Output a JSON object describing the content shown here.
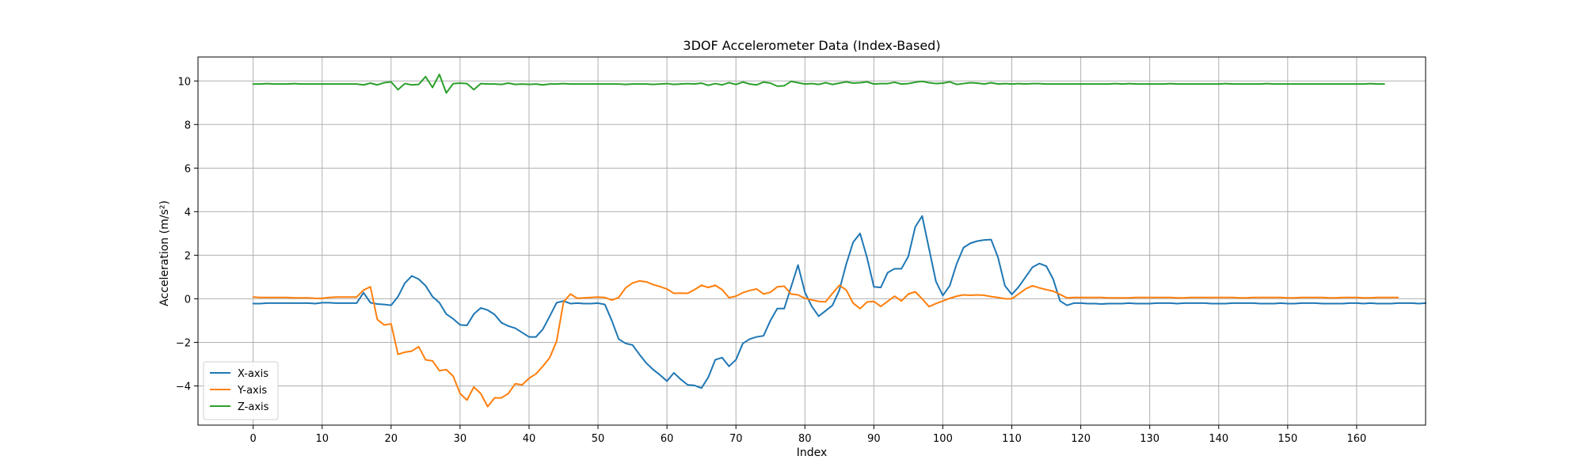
{
  "chart_data": {
    "type": "line",
    "title": "3DOF Accelerometer Data (Index-Based)",
    "xlabel": "Index",
    "ylabel": "Acceleration (m/s²)",
    "xlim": [
      -8,
      170
    ],
    "ylim": [
      -5.8,
      11.1
    ],
    "xticks": [
      0,
      10,
      20,
      30,
      40,
      50,
      60,
      70,
      80,
      90,
      100,
      110,
      120,
      130,
      140,
      150,
      160
    ],
    "yticks": [
      -4,
      -2,
      0,
      2,
      4,
      6,
      8,
      10
    ],
    "grid": true,
    "legend_position": "lower-left",
    "series": [
      {
        "name": "X-axis",
        "color": "#1f77b4",
        "values": [
          -0.22,
          -0.22,
          -0.2,
          -0.2,
          -0.2,
          -0.2,
          -0.2,
          -0.2,
          -0.2,
          -0.22,
          -0.18,
          -0.18,
          -0.2,
          -0.2,
          -0.2,
          -0.2,
          0.28,
          -0.18,
          -0.24,
          -0.26,
          -0.3,
          0.1,
          0.72,
          1.05,
          0.9,
          0.6,
          0.1,
          -0.18,
          -0.7,
          -0.92,
          -1.2,
          -1.22,
          -0.7,
          -0.42,
          -0.52,
          -0.72,
          -1.1,
          -1.25,
          -1.35,
          -1.55,
          -1.75,
          -1.75,
          -1.4,
          -0.8,
          -0.18,
          -0.1,
          -0.22,
          -0.2,
          -0.22,
          -0.22,
          -0.2,
          -0.26,
          -1.0,
          -1.85,
          -2.05,
          -2.12,
          -2.55,
          -2.95,
          -3.25,
          -3.5,
          -3.78,
          -3.4,
          -3.7,
          -3.95,
          -3.98,
          -4.1,
          -3.6,
          -2.8,
          -2.7,
          -3.1,
          -2.8,
          -2.05,
          -1.85,
          -1.75,
          -1.7,
          -1.0,
          -0.45,
          -0.45,
          0.55,
          1.55,
          0.3,
          -0.35,
          -0.8,
          -0.55,
          -0.3,
          0.4,
          1.6,
          2.6,
          3.0,
          1.9,
          0.55,
          0.52,
          1.2,
          1.38,
          1.38,
          1.95,
          3.3,
          3.8,
          2.3,
          0.8,
          0.15,
          0.6,
          1.6,
          2.35,
          2.55,
          2.65,
          2.7,
          2.72,
          1.9,
          0.6,
          0.2,
          0.55,
          1.0,
          1.45,
          1.62,
          1.5,
          0.9,
          -0.1,
          -0.3,
          -0.2,
          -0.2,
          -0.22,
          -0.22,
          -0.24,
          -0.22,
          -0.22,
          -0.22,
          -0.2,
          -0.22,
          -0.22,
          -0.22,
          -0.2,
          -0.2,
          -0.2,
          -0.22,
          -0.2,
          -0.2,
          -0.2,
          -0.2,
          -0.22,
          -0.22,
          -0.22,
          -0.2,
          -0.2,
          -0.2,
          -0.2,
          -0.22,
          -0.22,
          -0.22,
          -0.2,
          -0.22,
          -0.22,
          -0.2,
          -0.2,
          -0.2,
          -0.22,
          -0.22,
          -0.22,
          -0.22,
          -0.2,
          -0.2,
          -0.22,
          -0.2,
          -0.22,
          -0.22,
          -0.22,
          -0.2,
          -0.2,
          -0.2,
          -0.22,
          -0.2
        ]
      },
      {
        "name": "Y-axis",
        "color": "#ff7f0e",
        "values": [
          0.08,
          0.06,
          0.06,
          0.06,
          0.06,
          0.06,
          0.04,
          0.04,
          0.04,
          0.02,
          0.02,
          0.06,
          0.08,
          0.08,
          0.08,
          0.08,
          0.4,
          0.55,
          -0.95,
          -1.2,
          -1.15,
          -2.55,
          -2.45,
          -2.4,
          -2.2,
          -2.8,
          -2.85,
          -3.3,
          -3.25,
          -3.55,
          -4.35,
          -4.65,
          -4.05,
          -4.35,
          -4.95,
          -4.55,
          -4.55,
          -4.35,
          -3.9,
          -3.95,
          -3.65,
          -3.45,
          -3.1,
          -2.7,
          -1.95,
          -0.15,
          0.22,
          0.02,
          0.04,
          0.06,
          0.08,
          0.06,
          -0.06,
          0.06,
          0.5,
          0.72,
          0.82,
          0.78,
          0.65,
          0.56,
          0.45,
          0.25,
          0.26,
          0.25,
          0.42,
          0.62,
          0.52,
          0.62,
          0.42,
          0.05,
          0.12,
          0.28,
          0.38,
          0.45,
          0.22,
          0.3,
          0.55,
          0.58,
          0.22,
          0.18,
          0.02,
          -0.05,
          -0.12,
          -0.14,
          0.25,
          0.62,
          0.4,
          -0.2,
          -0.45,
          -0.15,
          -0.12,
          -0.35,
          -0.12,
          0.12,
          -0.1,
          0.22,
          0.32,
          0.0,
          -0.36,
          -0.22,
          -0.1,
          0.02,
          0.12,
          0.18,
          0.16,
          0.18,
          0.16,
          0.1,
          0.06,
          0.0,
          0.0,
          0.22,
          0.45,
          0.6,
          0.5,
          0.42,
          0.35,
          0.2,
          0.04,
          0.06,
          0.06,
          0.06,
          0.06,
          0.06,
          0.04,
          0.04,
          0.04,
          0.04,
          0.06,
          0.06,
          0.06,
          0.06,
          0.06,
          0.06,
          0.04,
          0.04,
          0.06,
          0.06,
          0.06,
          0.06,
          0.06,
          0.06,
          0.06,
          0.04,
          0.04,
          0.06,
          0.06,
          0.06,
          0.06,
          0.06,
          0.04,
          0.04,
          0.06,
          0.06,
          0.06,
          0.06,
          0.04,
          0.04,
          0.06,
          0.06,
          0.06,
          0.04,
          0.04,
          0.06,
          0.06,
          0.06,
          0.06
        ]
      },
      {
        "name": "Z-axis",
        "color": "#2ca02c",
        "values": [
          9.86,
          9.86,
          9.88,
          9.86,
          9.86,
          9.86,
          9.88,
          9.86,
          9.86,
          9.86,
          9.86,
          9.86,
          9.86,
          9.86,
          9.86,
          9.86,
          9.82,
          9.9,
          9.82,
          9.92,
          9.96,
          9.6,
          9.88,
          9.82,
          9.84,
          10.2,
          9.7,
          10.3,
          9.45,
          9.88,
          9.9,
          9.88,
          9.6,
          9.88,
          9.86,
          9.86,
          9.84,
          9.9,
          9.84,
          9.86,
          9.84,
          9.86,
          9.82,
          9.86,
          9.86,
          9.88,
          9.86,
          9.86,
          9.86,
          9.86,
          9.86,
          9.86,
          9.86,
          9.86,
          9.84,
          9.86,
          9.86,
          9.86,
          9.84,
          9.86,
          9.88,
          9.84,
          9.86,
          9.88,
          9.86,
          9.9,
          9.8,
          9.88,
          9.82,
          9.92,
          9.84,
          9.95,
          9.86,
          9.82,
          9.95,
          9.9,
          9.76,
          9.78,
          9.98,
          9.92,
          9.86,
          9.88,
          9.84,
          9.92,
          9.84,
          9.9,
          9.96,
          9.9,
          9.92,
          9.96,
          9.86,
          9.88,
          9.88,
          9.94,
          9.86,
          9.88,
          9.94,
          9.98,
          9.92,
          9.88,
          9.9,
          9.96,
          9.84,
          9.88,
          9.92,
          9.9,
          9.86,
          9.92,
          9.86,
          9.88,
          9.86,
          9.88,
          9.86,
          9.88,
          9.88,
          9.86,
          9.86,
          9.86,
          9.86,
          9.86,
          9.86,
          9.86,
          9.86,
          9.86,
          9.86,
          9.88,
          9.86,
          9.88,
          9.86,
          9.86,
          9.86,
          9.86,
          9.86,
          9.88,
          9.86,
          9.86,
          9.86,
          9.86,
          9.86,
          9.86,
          9.86,
          9.88,
          9.86,
          9.86,
          9.86,
          9.86,
          9.86,
          9.88,
          9.86,
          9.86,
          9.86,
          9.86,
          9.86,
          9.86,
          9.86,
          9.86,
          9.86,
          9.86,
          9.86,
          9.86,
          9.86,
          9.86,
          9.88,
          9.86,
          9.86
        ]
      }
    ]
  }
}
